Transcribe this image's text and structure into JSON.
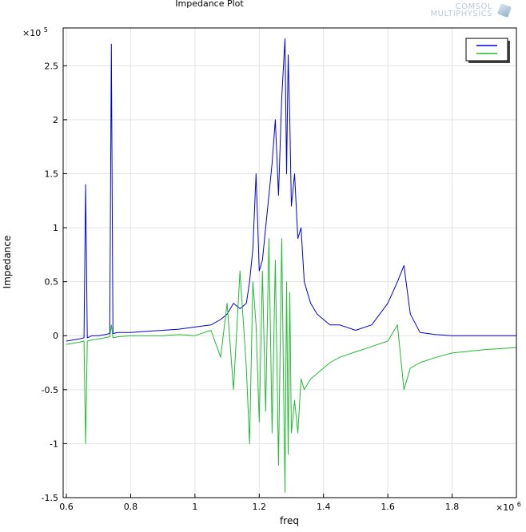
{
  "logo": {
    "line1": "COMSOL",
    "line2": "MULTIPHYSICS"
  },
  "chart_data": {
    "type": "line",
    "title": "Impedance Plot",
    "xlabel": "freq",
    "ylabel": "Impedance",
    "x_multiplier": "×10",
    "x_multiplier_exp": "6",
    "y_multiplier": "×10",
    "y_multiplier_exp": "5",
    "xlim": [
      0.59,
      2.0
    ],
    "ylim": [
      -1.5,
      2.85
    ],
    "xticks": [
      0.6,
      0.8,
      1.0,
      1.2,
      1.4,
      1.6,
      1.8
    ],
    "xtick_labels": [
      "0.6",
      "0.8",
      "1",
      "1.2",
      "1.4",
      "1.6",
      "1.8"
    ],
    "yticks": [
      -1.5,
      -1.0,
      -0.5,
      0,
      0.5,
      1.0,
      1.5,
      2.0,
      2.5
    ],
    "ytick_labels": [
      "-1.5",
      "-1",
      "-0.5",
      "0",
      "0.5",
      "1",
      "1.5",
      "2",
      "2.5"
    ],
    "grid": true,
    "legend_placement": "top-right",
    "series": [
      {
        "color": "#0000dd",
        "x": [
          0.6,
          0.62,
          0.64,
          0.655,
          0.66,
          0.665,
          0.68,
          0.7,
          0.72,
          0.735,
          0.74,
          0.745,
          0.76,
          0.8,
          0.85,
          0.9,
          0.95,
          1.0,
          1.05,
          1.08,
          1.1,
          1.12,
          1.14,
          1.16,
          1.17,
          1.18,
          1.19,
          1.2,
          1.21,
          1.22,
          1.23,
          1.24,
          1.25,
          1.26,
          1.27,
          1.28,
          1.285,
          1.29,
          1.295,
          1.3,
          1.31,
          1.32,
          1.33,
          1.34,
          1.36,
          1.38,
          1.4,
          1.42,
          1.45,
          1.5,
          1.55,
          1.6,
          1.63,
          1.65,
          1.67,
          1.7,
          1.75,
          1.8,
          1.9,
          2.0
        ],
        "y": [
          -0.05,
          -0.04,
          -0.03,
          -0.02,
          1.4,
          -0.02,
          0,
          0,
          0.01,
          0.02,
          2.7,
          0.02,
          0.03,
          0.03,
          0.04,
          0.05,
          0.06,
          0.08,
          0.1,
          0.15,
          0.2,
          0.3,
          0.25,
          0.3,
          0.5,
          0.8,
          1.5,
          0.6,
          0.7,
          1.0,
          1.3,
          1.6,
          2.0,
          1.3,
          2.2,
          2.75,
          1.5,
          2.6,
          2.0,
          1.2,
          1.5,
          0.9,
          1.0,
          0.5,
          0.3,
          0.2,
          0.15,
          0.1,
          0.1,
          0.05,
          0.1,
          0.3,
          0.5,
          0.65,
          0.2,
          0.03,
          0.01,
          0.0,
          0.0,
          0.0
        ]
      },
      {
        "color": "#22bb33",
        "x": [
          0.6,
          0.62,
          0.64,
          0.655,
          0.66,
          0.665,
          0.68,
          0.7,
          0.72,
          0.735,
          0.74,
          0.745,
          0.76,
          0.8,
          0.85,
          0.9,
          0.95,
          1.0,
          1.05,
          1.08,
          1.1,
          1.12,
          1.14,
          1.16,
          1.17,
          1.18,
          1.19,
          1.2,
          1.21,
          1.22,
          1.23,
          1.24,
          1.25,
          1.26,
          1.27,
          1.28,
          1.285,
          1.29,
          1.295,
          1.3,
          1.31,
          1.32,
          1.33,
          1.34,
          1.36,
          1.38,
          1.4,
          1.42,
          1.45,
          1.5,
          1.55,
          1.6,
          1.63,
          1.65,
          1.67,
          1.7,
          1.75,
          1.8,
          1.9,
          2.0
        ],
        "y": [
          -0.08,
          -0.07,
          -0.06,
          -0.05,
          -1.0,
          -0.05,
          -0.04,
          -0.03,
          -0.02,
          -0.01,
          0.1,
          -0.02,
          -0.01,
          0.0,
          0.0,
          0.0,
          0.01,
          0.0,
          0.05,
          -0.2,
          0.3,
          -0.5,
          0.6,
          -0.3,
          -1.0,
          0.5,
          0.1,
          -0.8,
          0.6,
          -0.7,
          0.9,
          -0.9,
          0.7,
          -1.2,
          0.9,
          -1.45,
          0.5,
          -1.1,
          0.4,
          -0.9,
          -0.6,
          -0.9,
          -0.4,
          -0.5,
          -0.4,
          -0.35,
          -0.3,
          -0.25,
          -0.2,
          -0.15,
          -0.1,
          -0.05,
          0.1,
          -0.5,
          -0.3,
          -0.25,
          -0.2,
          -0.16,
          -0.13,
          -0.11
        ]
      }
    ]
  }
}
